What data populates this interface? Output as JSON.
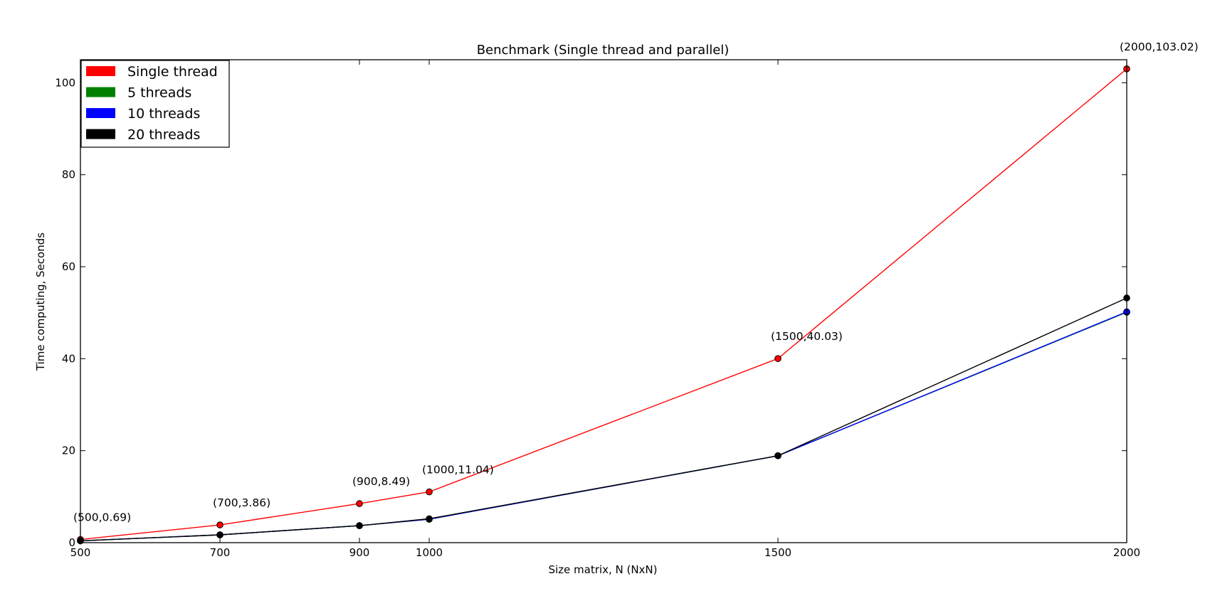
{
  "chart_data": {
    "type": "line",
    "title": "Benchmark (Single thread and parallel)",
    "xlabel": "Size matrix, N (NxN)",
    "ylabel": "Time computing, Seconds",
    "x": [
      500,
      700,
      900,
      1000,
      1500,
      2000
    ],
    "x_ticks": [
      "500",
      "700",
      "900",
      "1000",
      "1500",
      "2000"
    ],
    "y_ticks": [
      "0",
      "20",
      "40",
      "60",
      "80",
      "100"
    ],
    "xlim": [
      500,
      2000
    ],
    "ylim": [
      0,
      105
    ],
    "grid": false,
    "legend_position": "top-left",
    "series": [
      {
        "name": "Single thread",
        "color": "#ff0000",
        "values": [
          0.69,
          3.86,
          8.49,
          11.04,
          40.03,
          103.02
        ]
      },
      {
        "name": "5 threads",
        "color": "#008000",
        "values": [
          0.4,
          1.7,
          3.7,
          5.1,
          18.9,
          50.1
        ]
      },
      {
        "name": "10 threads",
        "color": "#0000ff",
        "values": [
          0.4,
          1.7,
          3.7,
          5.1,
          18.9,
          50.2
        ]
      },
      {
        "name": "20 threads",
        "color": "#000000",
        "values": [
          0.4,
          1.7,
          3.7,
          5.2,
          18.9,
          53.2
        ]
      }
    ],
    "annotations": [
      {
        "text": "(500,0.69)",
        "x": 500,
        "y": 0.69
      },
      {
        "text": "(700,3.86)",
        "x": 700,
        "y": 3.86
      },
      {
        "text": "(900,8.49)",
        "x": 900,
        "y": 8.49
      },
      {
        "text": "(1000,11.04)",
        "x": 1000,
        "y": 11.04
      },
      {
        "text": "(1500,40.03)",
        "x": 1500,
        "y": 40.03
      },
      {
        "text": "(2000,103.02)",
        "x": 2000,
        "y": 103.02
      }
    ]
  }
}
